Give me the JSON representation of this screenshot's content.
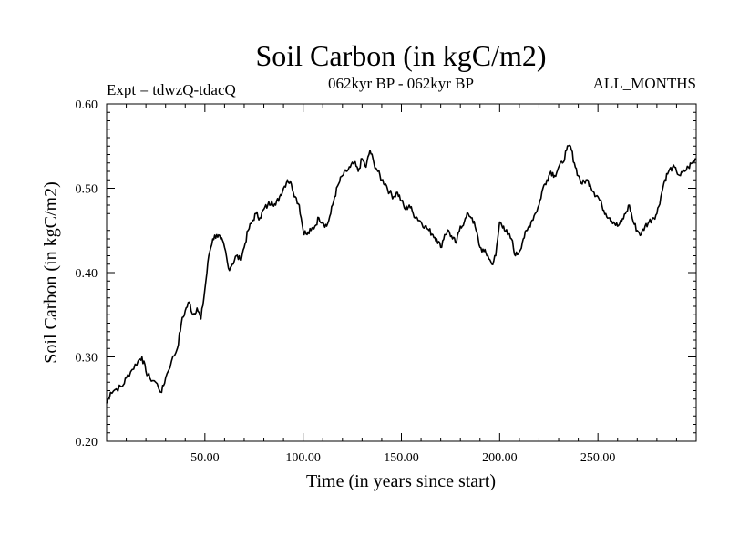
{
  "chart_data": {
    "type": "line",
    "title": "Soil Carbon (in kgC/m2)",
    "subtitle_left": "Expt = tdwzQ-tdacQ",
    "subtitle_center": "062kyr BP - 062kyr BP",
    "subtitle_right": "ALL_MONTHS",
    "xlabel": "Time (in years since start)",
    "ylabel": "Soil Carbon (in kgC/m2)",
    "xlim": [
      0,
      300
    ],
    "ylim": [
      0.2,
      0.6
    ],
    "x_ticks": [
      50,
      100,
      150,
      200,
      250
    ],
    "x_tick_labels": [
      "50.00",
      "100.00",
      "150.00",
      "200.00",
      "250.00"
    ],
    "y_ticks": [
      0.2,
      0.3,
      0.4,
      0.5,
      0.6
    ],
    "y_tick_labels": [
      "0.20",
      "0.30",
      "0.40",
      "0.50",
      "0.60"
    ],
    "series": [
      {
        "name": "Soil Carbon",
        "color": "#000000",
        "x": [
          0,
          2,
          5,
          8,
          10,
          13,
          16,
          18,
          20,
          22,
          25,
          28,
          30,
          33,
          36,
          38,
          40,
          42,
          44,
          46,
          48,
          50,
          52,
          54,
          56,
          58,
          60,
          62,
          64,
          66,
          68,
          70,
          72,
          74,
          76,
          78,
          80,
          82,
          84,
          86,
          88,
          90,
          92,
          94,
          96,
          98,
          100,
          102,
          104,
          106,
          108,
          110,
          112,
          114,
          116,
          118,
          120,
          122,
          124,
          126,
          128,
          130,
          132,
          134,
          136,
          138,
          140,
          142,
          144,
          146,
          148,
          150,
          152,
          154,
          156,
          158,
          160,
          162,
          164,
          166,
          168,
          170,
          172,
          174,
          176,
          178,
          180,
          182,
          184,
          186,
          188,
          190,
          192,
          194,
          196,
          198,
          200,
          202,
          204,
          206,
          208,
          210,
          212,
          214,
          216,
          218,
          220,
          222,
          224,
          226,
          228,
          230,
          232,
          234,
          236,
          238,
          240,
          242,
          244,
          246,
          248,
          250,
          252,
          254,
          256,
          258,
          260,
          262,
          264,
          266,
          268,
          270,
          272,
          274,
          276,
          278,
          280,
          282,
          284,
          286,
          288,
          290,
          292,
          294,
          296,
          298,
          300
        ],
        "values": [
          0.245,
          0.258,
          0.262,
          0.265,
          0.275,
          0.285,
          0.295,
          0.3,
          0.283,
          0.275,
          0.27,
          0.258,
          0.275,
          0.295,
          0.31,
          0.34,
          0.355,
          0.365,
          0.35,
          0.358,
          0.345,
          0.38,
          0.42,
          0.44,
          0.445,
          0.44,
          0.43,
          0.405,
          0.41,
          0.42,
          0.415,
          0.43,
          0.45,
          0.46,
          0.47,
          0.465,
          0.475,
          0.48,
          0.485,
          0.48,
          0.49,
          0.5,
          0.51,
          0.505,
          0.49,
          0.48,
          0.45,
          0.445,
          0.45,
          0.455,
          0.465,
          0.46,
          0.455,
          0.47,
          0.49,
          0.505,
          0.515,
          0.52,
          0.525,
          0.53,
          0.52,
          0.535,
          0.525,
          0.545,
          0.53,
          0.52,
          0.51,
          0.505,
          0.495,
          0.49,
          0.495,
          0.485,
          0.475,
          0.48,
          0.47,
          0.465,
          0.46,
          0.455,
          0.45,
          0.445,
          0.44,
          0.43,
          0.445,
          0.45,
          0.44,
          0.435,
          0.455,
          0.46,
          0.47,
          0.465,
          0.45,
          0.43,
          0.425,
          0.42,
          0.41,
          0.42,
          0.46,
          0.455,
          0.445,
          0.44,
          0.42,
          0.425,
          0.44,
          0.45,
          0.46,
          0.47,
          0.48,
          0.5,
          0.51,
          0.52,
          0.515,
          0.525,
          0.53,
          0.545,
          0.55,
          0.53,
          0.515,
          0.505,
          0.51,
          0.505,
          0.495,
          0.49,
          0.48,
          0.47,
          0.465,
          0.46,
          0.455,
          0.46,
          0.47,
          0.48,
          0.46,
          0.45,
          0.445,
          0.455,
          0.46,
          0.465,
          0.47,
          0.49,
          0.51,
          0.52,
          0.525,
          0.52,
          0.515,
          0.52,
          0.525,
          0.53,
          0.535
        ]
      }
    ]
  }
}
